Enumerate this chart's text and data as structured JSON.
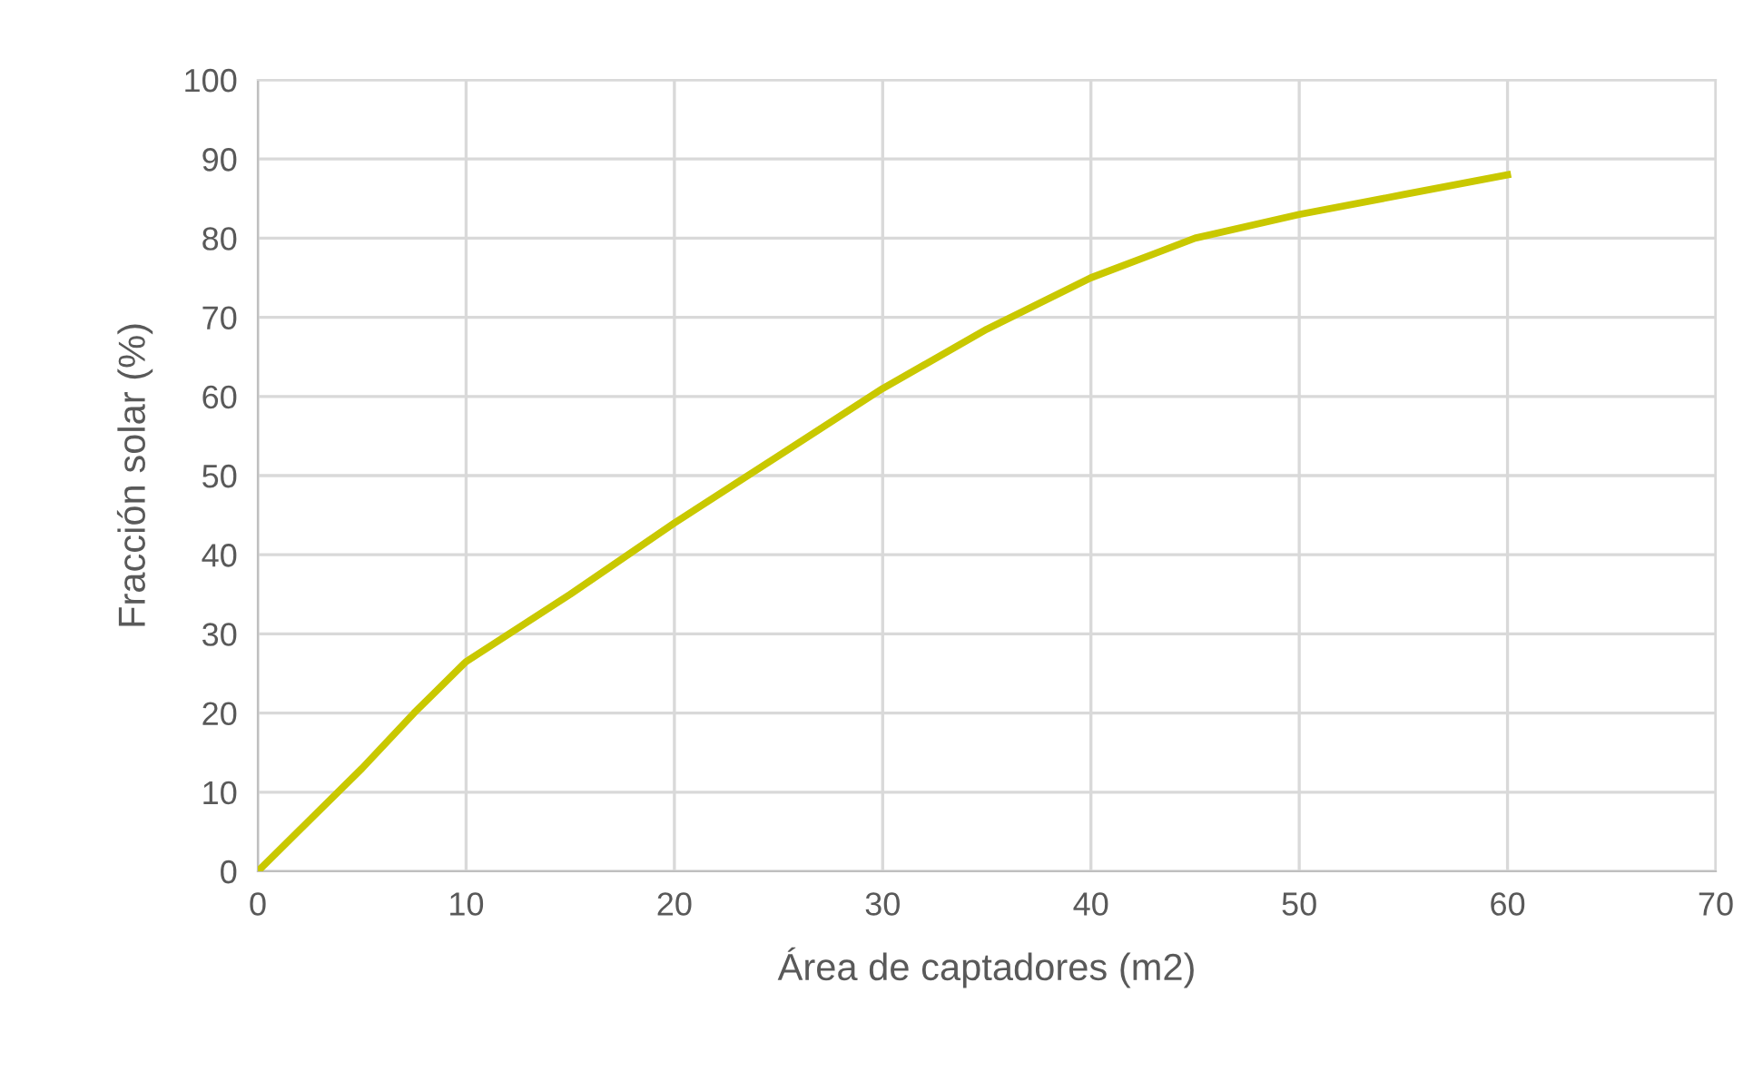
{
  "chart_data": {
    "type": "line",
    "xlabel": "Área de captadores (m2)",
    "ylabel": "Fracción solar (%)",
    "x": [
      0,
      2.5,
      5,
      7.5,
      10,
      15,
      20,
      25,
      30,
      35,
      40,
      45,
      50,
      55,
      60
    ],
    "series": [
      {
        "color": "#c9c800",
        "values": [
          0,
          6.5,
          13,
          20,
          26.5,
          35,
          44,
          52.5,
          61,
          68.5,
          75,
          80,
          83,
          85.5,
          88
        ]
      }
    ],
    "xlim": [
      0,
      70
    ],
    "xticks": [
      0,
      10,
      20,
      30,
      40,
      50,
      60,
      70
    ],
    "ylim": [
      0,
      100
    ],
    "yticks": [
      0,
      10,
      20,
      30,
      40,
      50,
      60,
      70,
      80,
      90,
      100
    ],
    "grid": true,
    "legend": false,
    "marker": "none",
    "line_style": "solid"
  }
}
